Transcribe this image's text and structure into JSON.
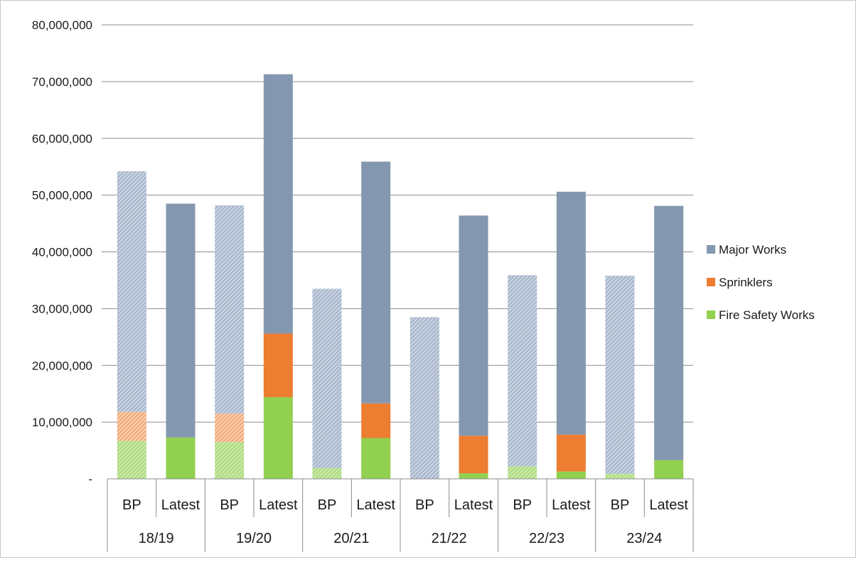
{
  "chart_data": {
    "type": "bar",
    "stacked": true,
    "groups": [
      "18/19",
      "19/20",
      "20/21",
      "21/22",
      "22/23",
      "23/24"
    ],
    "subcategories": [
      "BP",
      "Latest"
    ],
    "ylim": [
      0,
      80000000
    ],
    "y_ticks": [
      {
        "value": 0,
        "label": "-"
      },
      {
        "value": 10000000,
        "label": "10,000,000"
      },
      {
        "value": 20000000,
        "label": "20,000,000"
      },
      {
        "value": 30000000,
        "label": "30,000,000"
      },
      {
        "value": 40000000,
        "label": "40,000,000"
      },
      {
        "value": 50000000,
        "label": "50,000,000"
      },
      {
        "value": 60000000,
        "label": "60,000,000"
      },
      {
        "value": 70000000,
        "label": "70,000,000"
      },
      {
        "value": 80000000,
        "label": "80,000,000"
      }
    ],
    "grid": true,
    "legend_position": "right",
    "legend": [
      "Major Works",
      "Sprinklers",
      "Fire Safety Works"
    ],
    "bp_style": "hatched",
    "series": [
      {
        "name": "Fire Safety Works",
        "color": "#92d050",
        "values": [
          6700000,
          7300000,
          6500000,
          14400000,
          1900000,
          7200000,
          0,
          1000000,
          2200000,
          1300000,
          900000,
          3300000
        ]
      },
      {
        "name": "Sprinklers",
        "color": "#ed7d31",
        "values": [
          5100000,
          0,
          5000000,
          11200000,
          0,
          6100000,
          0,
          6600000,
          0,
          6500000,
          0,
          0
        ]
      },
      {
        "name": "Major Works",
        "color": "#8497b0",
        "values": [
          42400000,
          41200000,
          36700000,
          45700000,
          31600000,
          42600000,
          28500000,
          38800000,
          33700000,
          42800000,
          34900000,
          44800000
        ]
      }
    ]
  }
}
